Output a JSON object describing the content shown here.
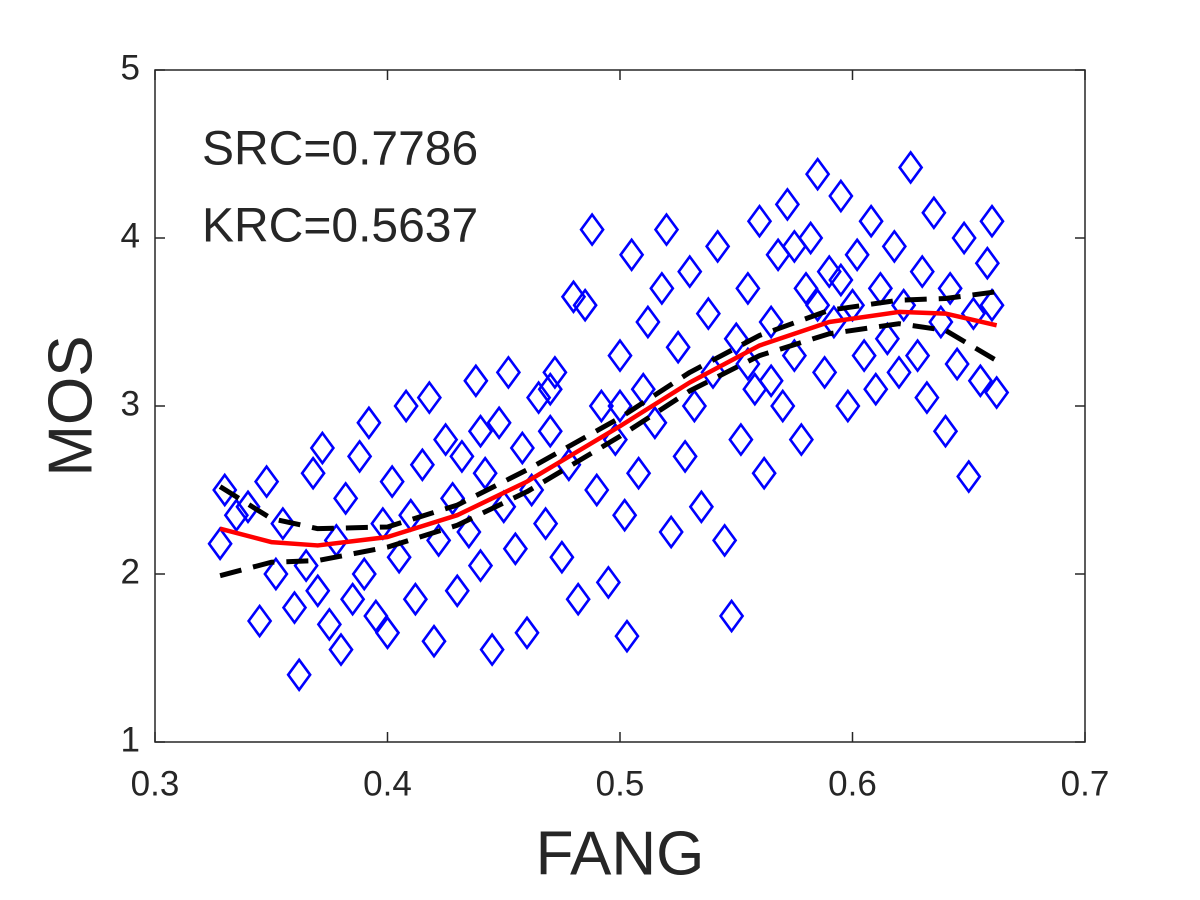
{
  "chart_data": {
    "type": "scatter",
    "x_label": "FANG",
    "y_label": "MOS",
    "annotations": [
      "SRC=0.7786",
      "KRC=0.5637"
    ],
    "xlim": [
      0.3,
      0.7
    ],
    "xticks": [
      0.3,
      0.4,
      0.5,
      0.6,
      0.7
    ],
    "ylim": [
      1,
      5
    ],
    "yticks": [
      1,
      2,
      3,
      4,
      5
    ],
    "grid": false,
    "series": [
      {
        "mode": "markers",
        "marker": "diamond",
        "color": "#0000ff",
        "x": [
          0.328,
          0.33,
          0.335,
          0.34,
          0.345,
          0.348,
          0.352,
          0.355,
          0.36,
          0.362,
          0.365,
          0.368,
          0.37,
          0.372,
          0.375,
          0.378,
          0.38,
          0.382,
          0.385,
          0.388,
          0.39,
          0.392,
          0.395,
          0.398,
          0.4,
          0.402,
          0.405,
          0.408,
          0.41,
          0.412,
          0.415,
          0.418,
          0.42,
          0.422,
          0.425,
          0.428,
          0.43,
          0.432,
          0.435,
          0.438,
          0.44,
          0.442,
          0.445,
          0.448,
          0.45,
          0.452,
          0.455,
          0.458,
          0.46,
          0.462,
          0.465,
          0.468,
          0.47,
          0.472,
          0.475,
          0.478,
          0.48,
          0.482,
          0.485,
          0.488,
          0.49,
          0.492,
          0.495,
          0.498,
          0.5,
          0.502,
          0.503,
          0.505,
          0.508,
          0.51,
          0.512,
          0.515,
          0.518,
          0.52,
          0.522,
          0.525,
          0.528,
          0.53,
          0.532,
          0.535,
          0.538,
          0.54,
          0.542,
          0.545,
          0.548,
          0.55,
          0.552,
          0.555,
          0.558,
          0.56,
          0.562,
          0.565,
          0.568,
          0.57,
          0.572,
          0.575,
          0.578,
          0.58,
          0.582,
          0.585,
          0.588,
          0.59,
          0.592,
          0.595,
          0.598,
          0.6,
          0.602,
          0.605,
          0.608,
          0.61,
          0.612,
          0.615,
          0.618,
          0.62,
          0.622,
          0.625,
          0.628,
          0.63,
          0.632,
          0.635,
          0.638,
          0.64,
          0.642,
          0.645,
          0.648,
          0.65,
          0.652,
          0.655,
          0.658,
          0.66,
          0.662,
          0.66,
          0.575,
          0.585,
          0.595,
          0.555,
          0.565,
          0.5,
          0.47,
          0.44
        ],
        "values": [
          2.18,
          2.5,
          2.35,
          2.4,
          1.72,
          2.55,
          2.0,
          2.3,
          1.8,
          1.4,
          2.05,
          2.6,
          1.9,
          2.75,
          1.7,
          2.2,
          1.55,
          2.45,
          1.85,
          2.7,
          2.0,
          2.9,
          1.75,
          2.3,
          1.65,
          2.55,
          2.1,
          3.0,
          2.35,
          1.85,
          2.65,
          3.05,
          1.6,
          2.2,
          2.8,
          2.45,
          1.9,
          2.7,
          2.25,
          3.15,
          2.05,
          2.6,
          1.55,
          2.9,
          2.4,
          3.2,
          2.15,
          2.75,
          1.65,
          2.5,
          3.05,
          2.3,
          2.85,
          3.2,
          2.1,
          2.65,
          3.65,
          1.85,
          3.6,
          4.05,
          2.5,
          3.0,
          1.95,
          2.8,
          3.3,
          2.35,
          1.63,
          3.9,
          2.6,
          3.1,
          3.5,
          2.9,
          3.7,
          4.05,
          2.25,
          3.35,
          2.7,
          3.8,
          3.0,
          2.4,
          3.55,
          3.2,
          3.95,
          2.2,
          1.75,
          3.4,
          2.8,
          3.7,
          3.1,
          4.1,
          2.6,
          3.5,
          3.9,
          3.0,
          4.2,
          3.3,
          2.8,
          3.7,
          4.0,
          4.38,
          3.2,
          3.8,
          3.5,
          4.25,
          3.0,
          3.6,
          3.9,
          3.3,
          4.1,
          3.1,
          3.7,
          3.4,
          3.95,
          3.2,
          3.6,
          4.42,
          3.3,
          3.8,
          3.05,
          4.15,
          3.5,
          2.85,
          3.7,
          3.25,
          4.0,
          2.58,
          3.55,
          3.15,
          3.85,
          4.1,
          3.08,
          3.6,
          3.95,
          3.6,
          3.75,
          3.25,
          3.15,
          3.0,
          3.1,
          2.85
        ]
      },
      {
        "mode": "line",
        "dashed": false,
        "color": "#ff0000",
        "x": [
          0.328,
          0.35,
          0.37,
          0.4,
          0.43,
          0.46,
          0.5,
          0.53,
          0.56,
          0.59,
          0.62,
          0.64,
          0.662
        ],
        "values": [
          2.27,
          2.19,
          2.17,
          2.22,
          2.35,
          2.55,
          2.88,
          3.14,
          3.36,
          3.5,
          3.56,
          3.55,
          3.48
        ]
      },
      {
        "mode": "line",
        "dashed": true,
        "color": "#000000",
        "x": [
          0.328,
          0.35,
          0.37,
          0.4,
          0.43,
          0.46,
          0.5,
          0.53,
          0.56,
          0.59,
          0.62,
          0.64,
          0.662
        ],
        "values": [
          2.52,
          2.33,
          2.27,
          2.28,
          2.41,
          2.62,
          2.93,
          3.2,
          3.42,
          3.57,
          3.63,
          3.64,
          3.68
        ]
      },
      {
        "mode": "line",
        "dashed": true,
        "color": "#000000",
        "x": [
          0.328,
          0.35,
          0.37,
          0.4,
          0.43,
          0.46,
          0.5,
          0.53,
          0.56,
          0.59,
          0.62,
          0.64,
          0.662
        ],
        "values": [
          1.99,
          2.07,
          2.08,
          2.16,
          2.29,
          2.49,
          2.82,
          3.09,
          3.3,
          3.43,
          3.49,
          3.45,
          3.27
        ]
      }
    ]
  }
}
